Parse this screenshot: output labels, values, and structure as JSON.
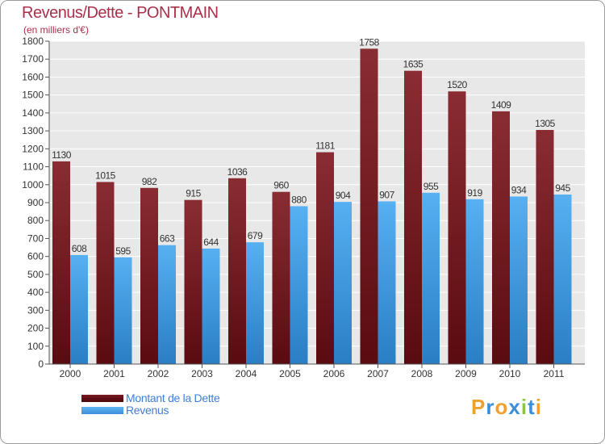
{
  "colors": {
    "title": "#a8304a",
    "debt": "#7a1a22",
    "revenue": "#4aa3ea",
    "legend_text": "#3f7ddb"
  },
  "header": {
    "title": "Revenus/Dette - PONTMAIN",
    "subtitle": "(en milliers d'€)"
  },
  "legend": {
    "debt_label": "Montant de la Dette",
    "revenue_label": "Revenus"
  },
  "logo": {
    "text": "Proxiti"
  },
  "chart_data": {
    "type": "bar",
    "title": "Revenus/Dette - PONTMAIN",
    "ylabel": "(en milliers d'€)",
    "xlabel": "",
    "categories": [
      "2000",
      "2001",
      "2002",
      "2003",
      "2004",
      "2005",
      "2006",
      "2007",
      "2008",
      "2009",
      "2010",
      "2011"
    ],
    "series": [
      {
        "name": "Montant de la Dette",
        "values": [
          1130,
          1015,
          982,
          915,
          1036,
          960,
          1181,
          1758,
          1635,
          1520,
          1409,
          1305
        ]
      },
      {
        "name": "Revenus",
        "values": [
          608,
          595,
          663,
          644,
          679,
          880,
          904,
          907,
          955,
          919,
          934,
          945
        ]
      }
    ],
    "ylim": [
      0,
      1800
    ],
    "yticks": [
      0,
      100,
      200,
      300,
      400,
      500,
      600,
      700,
      800,
      900,
      1000,
      1100,
      1200,
      1300,
      1400,
      1500,
      1600,
      1700,
      1800
    ],
    "grid": true,
    "legend_position": "bottom-left"
  }
}
